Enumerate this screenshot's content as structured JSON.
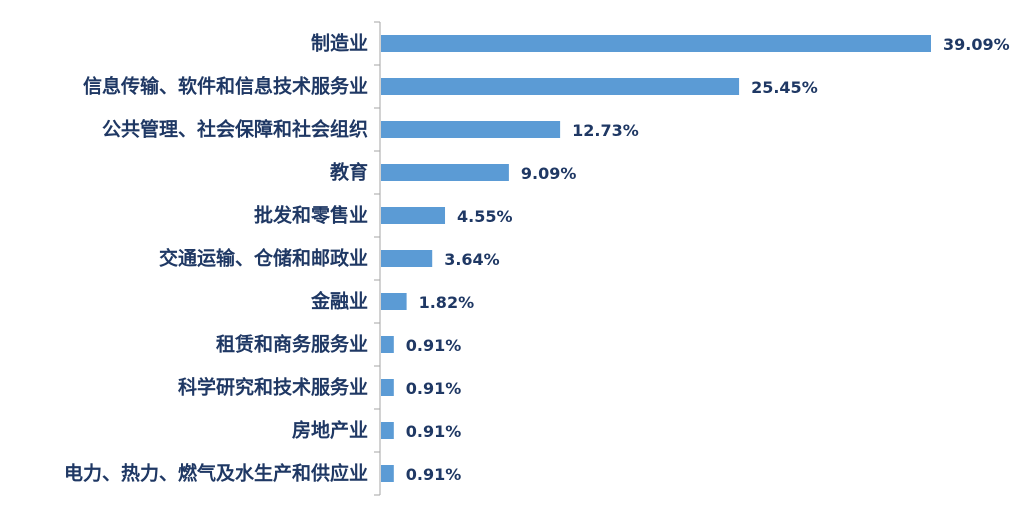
{
  "chart_data": {
    "type": "bar",
    "orientation": "horizontal",
    "categories": [
      "制造业",
      "信息传输、软件和信息技术服务业",
      "公共管理、社会保障和社会组织",
      "教育",
      "批发和零售业",
      "交通运输、仓储和邮政业",
      "金融业",
      "租赁和商务服务业",
      "科学研究和技术服务业",
      "房地产业",
      "电力、热力、燃气及水生产和供应业"
    ],
    "values": [
      39.09,
      25.45,
      12.73,
      9.09,
      4.55,
      3.64,
      1.82,
      0.91,
      0.91,
      0.91,
      0.91
    ],
    "value_labels": [
      "39.09%",
      "25.45%",
      "12.73%",
      "9.09%",
      "4.55%",
      "3.64%",
      "1.82%",
      "0.91%",
      "0.91%",
      "0.91%",
      "0.91%"
    ],
    "xlim": [
      0,
      40
    ],
    "grid": false,
    "legend": "none",
    "colors": {
      "bar": "#5B9BD5",
      "text": "#1F3864",
      "axis": "#A6A6A6"
    }
  }
}
